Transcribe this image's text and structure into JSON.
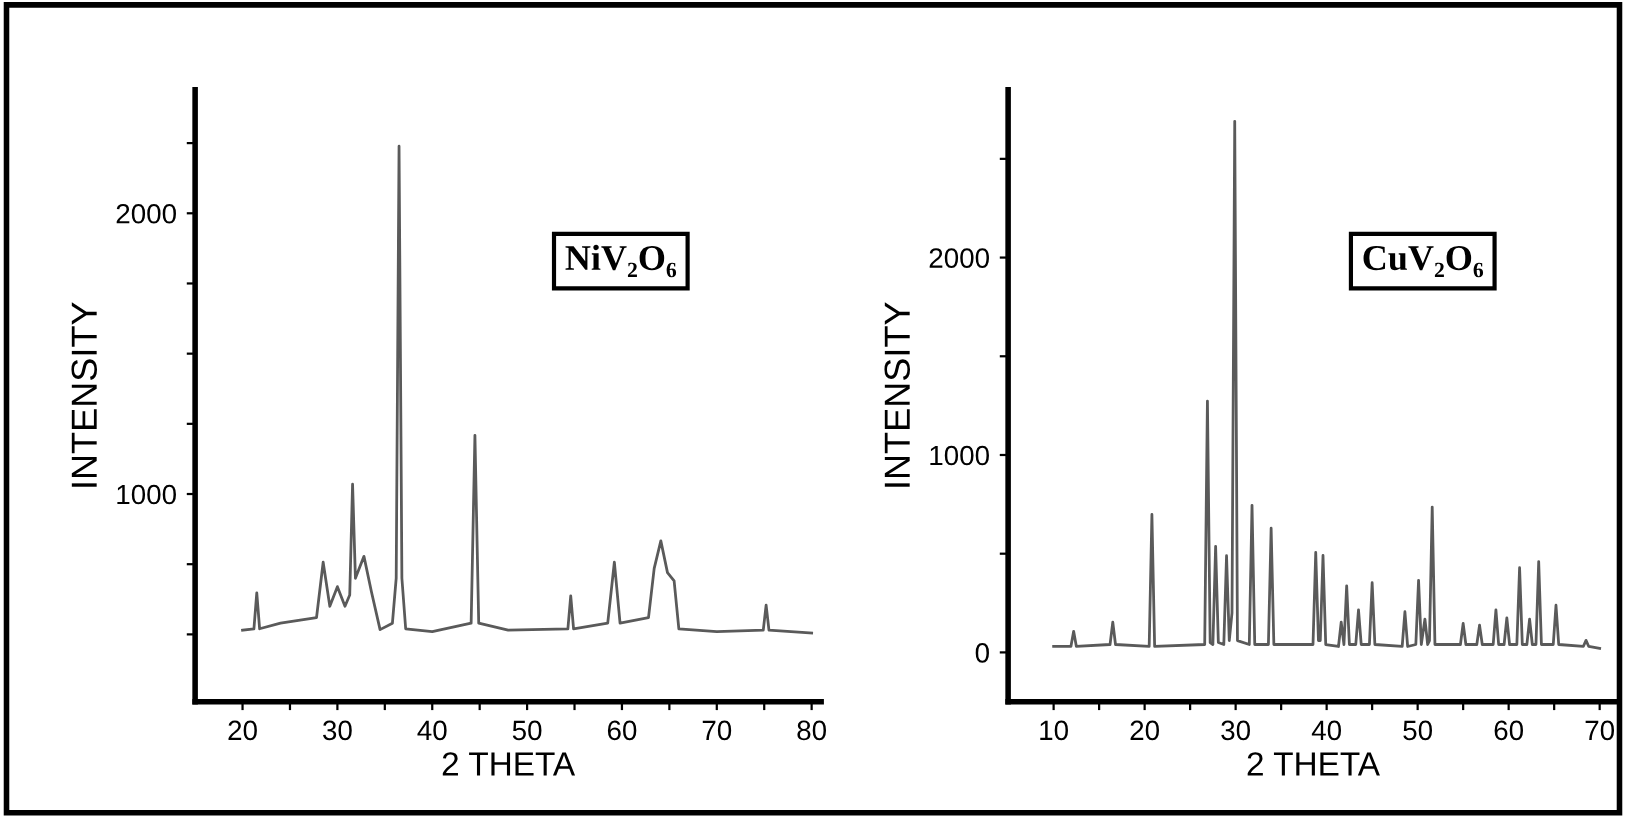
{
  "chart_data": [
    {
      "type": "line",
      "xlabel": "2 THETA",
      "ylabel": "INTENSITY",
      "annotations": [
        "NiV₂O₆"
      ],
      "grid": false,
      "legend": false,
      "xlim": [
        15,
        81
      ],
      "ylim": [
        260,
        2440
      ],
      "xticks": [
        20,
        {
          "value": 25,
          "label": null
        },
        30,
        {
          "value": 35,
          "label": null
        },
        40,
        {
          "value": 45,
          "label": null
        },
        50,
        {
          "value": 55,
          "label": null
        },
        60,
        {
          "value": 65,
          "label": null
        },
        70,
        {
          "value": 75,
          "label": null
        },
        80
      ],
      "yticks": [
        {
          "value": 500,
          "label": null
        },
        {
          "value": 750,
          "label": null
        },
        1000,
        {
          "value": 1250,
          "label": null
        },
        {
          "value": 1500,
          "label": null
        },
        {
          "value": 1750,
          "label": null
        },
        2000,
        {
          "value": 2250,
          "label": null
        }
      ],
      "series": [
        {
          "color": "#5a5a5a",
          "x": [
            20,
            21.2,
            21.5,
            21.8,
            24,
            27.8,
            28.5,
            29.2,
            30,
            30.8,
            31.3,
            31.6,
            31.9,
            32.8,
            33.6,
            34.5,
            35.8,
            36.2,
            36.5,
            36.8,
            37.2,
            40,
            44.1,
            44.5,
            44.9,
            48,
            54.3,
            54.6,
            54.9,
            58.5,
            59.2,
            59.8,
            62.8,
            63.4,
            64.1,
            64.8,
            65.5,
            66,
            70,
            74.9,
            75.2,
            75.5,
            80
          ],
          "values": [
            515,
            520,
            648,
            520,
            540,
            560,
            757,
            600,
            670,
            600,
            640,
            1035,
            700,
            778,
            650,
            517,
            540,
            700,
            2239,
            700,
            520,
            510,
            540,
            1209,
            540,
            515,
            520,
            637,
            520,
            540,
            757,
            540,
            560,
            735,
            833,
            720,
            691,
            520,
            510,
            515,
            604,
            515,
            505
          ]
        }
      ]
    },
    {
      "type": "line",
      "xlabel": "2 THETA",
      "ylabel": "INTENSITY",
      "annotations": [
        "CuV₂O₆"
      ],
      "grid": false,
      "legend": false,
      "xlim": [
        5,
        72
      ],
      "ylim": [
        -250,
        2850
      ],
      "xticks": [
        10,
        {
          "value": 15,
          "label": null
        },
        20,
        {
          "value": 25,
          "label": null
        },
        30,
        {
          "value": 35,
          "label": null
        },
        40,
        {
          "value": 45,
          "label": null
        },
        50,
        {
          "value": 55,
          "label": null
        },
        60,
        {
          "value": 65,
          "label": null
        },
        70
      ],
      "yticks": [
        0,
        {
          "value": 500,
          "label": null
        },
        1000,
        {
          "value": 1500,
          "label": null
        },
        2000,
        {
          "value": 2500,
          "label": null
        }
      ],
      "series": [
        {
          "color": "#5a5a5a",
          "x": [
            10,
            11.9,
            12.2,
            12.5,
            16.2,
            16.5,
            16.8,
            20.5,
            20.8,
            21.1,
            26.6,
            26.9,
            27.2,
            27.5,
            27.8,
            28.1,
            28.7,
            29.0,
            29.3,
            29.6,
            29.9,
            30.2,
            31.5,
            31.8,
            32.1,
            33.6,
            33.9,
            34.2,
            38.5,
            38.8,
            39.1,
            39.3,
            39.6,
            39.9,
            41.3,
            41.6,
            41.9,
            42.2,
            42.5,
            43.2,
            43.5,
            43.8,
            44.7,
            45.0,
            45.3,
            48.3,
            48.6,
            48.9,
            49.8,
            50.1,
            50.4,
            50.8,
            51.1,
            51.3,
            51.6,
            51.9,
            54.7,
            55.0,
            55.3,
            56.5,
            56.8,
            57.1,
            58.3,
            58.6,
            58.9,
            59.5,
            59.8,
            60.1,
            60.9,
            61.2,
            61.5,
            62.0,
            62.3,
            62.6,
            63.0,
            63.3,
            63.6,
            64.9,
            65.2,
            65.5,
            68.2,
            68.5,
            68.8,
            70
          ],
          "values": [
            30,
            30,
            107,
            30,
            40,
            153,
            40,
            30,
            699,
            30,
            40,
            1273,
            50,
            40,
            537,
            50,
            40,
            490,
            60,
            200,
            2690,
            60,
            40,
            745,
            40,
            40,
            629,
            40,
            40,
            506,
            60,
            60,
            491,
            40,
            30,
            153,
            40,
            337,
            40,
            40,
            215,
            40,
            40,
            353,
            40,
            30,
            206,
            30,
            40,
            365,
            40,
            169,
            40,
            60,
            736,
            40,
            40,
            147,
            40,
            40,
            138,
            40,
            40,
            215,
            40,
            40,
            175,
            40,
            40,
            429,
            40,
            40,
            169,
            40,
            40,
            460,
            40,
            40,
            239,
            40,
            30,
            61,
            30,
            20
          ]
        }
      ]
    }
  ]
}
